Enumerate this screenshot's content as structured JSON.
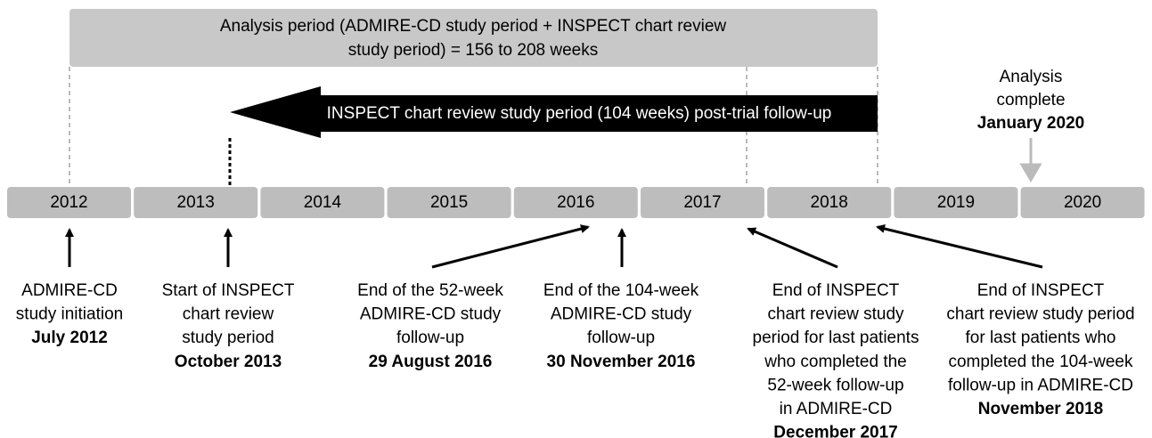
{
  "analysis_period": {
    "lines": [
      "Analysis period (ADMIRE-CD study period + INSPECT chart review",
      "study period) = 156 to 208 weeks"
    ]
  },
  "inspect_arrow": {
    "label": "INSPECT chart review study period (104 weeks) post-trial follow-up"
  },
  "analysis_complete": {
    "lines": [
      "Analysis",
      "complete"
    ],
    "date": "January 2020"
  },
  "years": [
    "2012",
    "2013",
    "2014",
    "2015",
    "2016",
    "2017",
    "2018",
    "2019",
    "2020"
  ],
  "events": [
    {
      "lines": [
        "ADMIRE-CD",
        "study initiation"
      ],
      "date": "July 2012"
    },
    {
      "lines": [
        "Start of INSPECT",
        "chart review",
        "study period"
      ],
      "date": "October 2013"
    },
    {
      "lines": [
        "End of the 52-week",
        "ADMIRE-CD study",
        "follow-up"
      ],
      "date": "29 August 2016"
    },
    {
      "lines": [
        "End of the 104-week",
        "ADMIRE-CD study",
        "follow-up"
      ],
      "date": "30 November 2016"
    },
    {
      "lines": [
        "End of INSPECT",
        "chart review study",
        "period for last patients",
        "who completed the",
        "52-week follow-up",
        "in ADMIRE-CD"
      ],
      "date": "December 2017"
    },
    {
      "lines": [
        "End of INSPECT",
        "chart review study period",
        "for last patients who",
        "completed the 104-week",
        "follow-up in ADMIRE-CD"
      ],
      "date": "November 2018"
    }
  ]
}
